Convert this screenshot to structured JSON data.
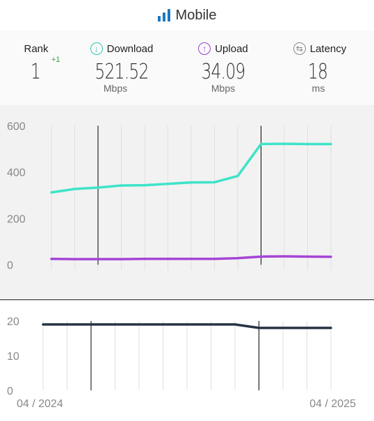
{
  "header": {
    "title": "Mobile",
    "icon": "signal-bars-icon",
    "accent": "#1a78c2"
  },
  "stats": {
    "rank": {
      "label": "Rank",
      "value": "1",
      "delta": "+1"
    },
    "download": {
      "label": "Download",
      "value": "521.52",
      "unit": "Mbps",
      "icon": "download-icon",
      "color": "#2ec9b0"
    },
    "upload": {
      "label": "Upload",
      "value": "34.09",
      "unit": "Mbps",
      "icon": "upload-icon",
      "color": "#9b3fd1"
    },
    "latency": {
      "label": "Latency",
      "value": "18",
      "unit": "ms",
      "icon": "latency-icon",
      "color": "#888888"
    }
  },
  "chart_data": [
    {
      "type": "line",
      "x": [
        "2024-04",
        "2024-05",
        "2024-06",
        "2024-07",
        "2024-08",
        "2024-09",
        "2024-10",
        "2024-11",
        "2024-12",
        "2025-01",
        "2025-02",
        "2025-03",
        "2025-04"
      ],
      "series": [
        {
          "name": "Download",
          "color": "#3ee3c8",
          "values": [
            312,
            327,
            333,
            342,
            343,
            349,
            355,
            356,
            383,
            521,
            522,
            521,
            521
          ]
        },
        {
          "name": "Upload",
          "color": "#a445d6",
          "values": [
            25,
            24,
            24,
            24,
            25,
            25,
            25,
            25,
            28,
            35,
            36,
            35,
            34
          ]
        }
      ],
      "ylim": [
        0,
        600
      ],
      "yticks": [
        0,
        200,
        400,
        600
      ],
      "markers": [
        "2024-06",
        "2025-01"
      ],
      "grid": true
    },
    {
      "type": "line",
      "x": [
        "2024-04",
        "2024-05",
        "2024-06",
        "2024-07",
        "2024-08",
        "2024-09",
        "2024-10",
        "2024-11",
        "2024-12",
        "2025-01",
        "2025-02",
        "2025-03",
        "2025-04"
      ],
      "series": [
        {
          "name": "Latency",
          "color": "#263244",
          "values": [
            19,
            19,
            19,
            19,
            19,
            19,
            19,
            19,
            19,
            18,
            18,
            18,
            18
          ]
        }
      ],
      "ylim": [
        0,
        20
      ],
      "yticks": [
        0,
        10,
        20
      ],
      "xtick_labels": [
        "04 / 2024",
        "04 / 2025"
      ],
      "markers": [
        "2024-06",
        "2025-01"
      ],
      "grid": true
    }
  ]
}
